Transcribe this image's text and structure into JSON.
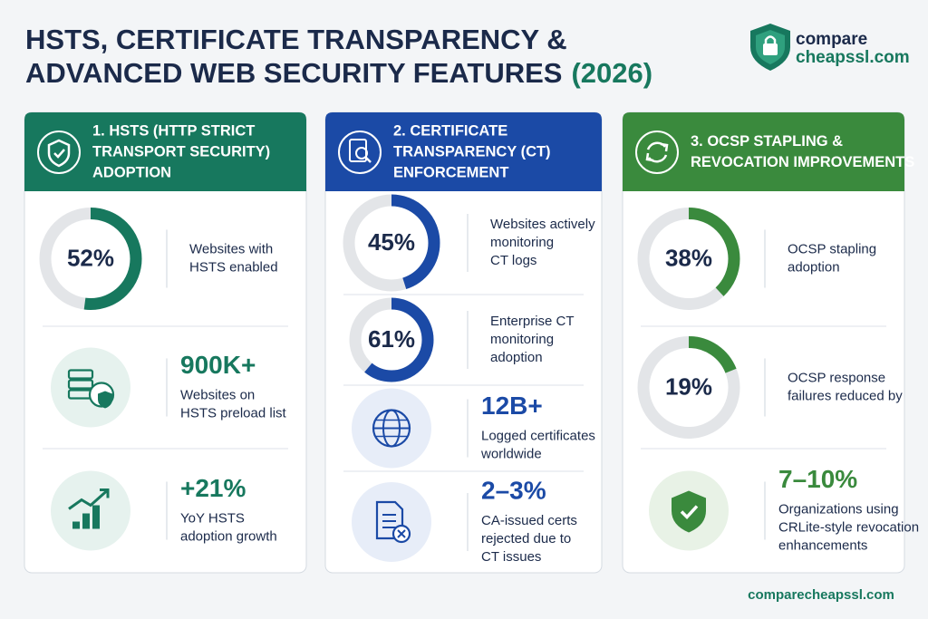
{
  "header": {
    "title_lines": [
      "HSTS, CERTIFICATE TRANSPARENCY &",
      "ADVANCED WEB SECURITY FEATURES"
    ],
    "year": "(2026)",
    "logo_top": "compare",
    "logo_bottom": "cheapssl.com"
  },
  "panels": [
    {
      "title": [
        "1. HSTS (HTTP STRICT",
        "TRANSPORT SECURITY)",
        "ADOPTION"
      ],
      "color": "#17785e",
      "tint": "#e6f2ee",
      "items": [
        {
          "value": 52,
          "value_label": "52%",
          "text": [
            "Websites with",
            "HSTS enabled"
          ]
        },
        {
          "headline": "900K+",
          "text": [
            "Websites on",
            "HSTS preload list"
          ]
        },
        {
          "headline": "+21%",
          "text": [
            "YoY HSTS",
            "adoption growth"
          ]
        }
      ]
    },
    {
      "title": [
        "2. CERTIFICATE",
        "TRANSPARENCY (CT)",
        "ENFORCEMENT"
      ],
      "color": "#1b4aa6",
      "tint": "#e7edf8",
      "items": [
        {
          "value": 45,
          "value_label": "45%",
          "text": [
            "Websites actively",
            "monitoring",
            "CT logs"
          ]
        },
        {
          "value": 61,
          "value_label": "61%",
          "text": [
            "Enterprise CT",
            "monitoring",
            "adoption"
          ]
        },
        {
          "headline": "12B+",
          "text": [
            "Logged certificates",
            "worldwide"
          ]
        },
        {
          "headline": "2–3%",
          "text": [
            "CA-issued certs",
            "rejected due to",
            "CT issues"
          ]
        }
      ]
    },
    {
      "title": [
        "3. OCSP STAPLING &",
        "REVOCATION IMPROVEMENTS"
      ],
      "color": "#3a8a3d",
      "tint": "#e8f2e6",
      "items": [
        {
          "value": 38,
          "value_label": "38%",
          "text": [
            "OCSP stapling",
            "adoption"
          ]
        },
        {
          "value": 19,
          "value_label": "19%",
          "text": [
            "OCSP response",
            "failures reduced by"
          ]
        },
        {
          "headline": "7–10%",
          "text": [
            "Organizations using",
            "CRLite-style revocation",
            "enhancements"
          ]
        }
      ]
    }
  ],
  "footer": "comparecheapssl.com"
}
